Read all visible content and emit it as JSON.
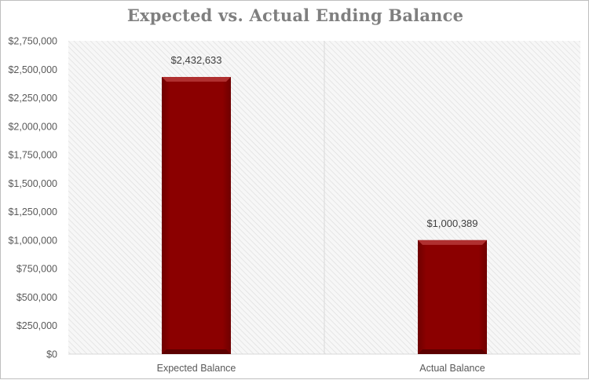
{
  "chart_data": {
    "type": "bar",
    "title": "Expected vs. Actual Ending Balance",
    "xlabel": "",
    "ylabel": "",
    "categories": [
      "Expected Balance",
      "Actual Balance"
    ],
    "values": [
      2432633,
      1000389
    ],
    "data_labels": [
      "$2,432,633",
      "$1,000,389"
    ],
    "ylim": [
      0,
      2750000
    ],
    "y_ticks": [
      0,
      250000,
      500000,
      750000,
      1000000,
      1250000,
      1500000,
      1750000,
      2000000,
      2250000,
      2500000,
      2750000
    ],
    "y_tick_labels": [
      "$0",
      "$250,000",
      "$500,000",
      "$750,000",
      "$1,000,000",
      "$1,250,000",
      "$1,500,000",
      "$1,750,000",
      "$2,000,000",
      "$2,250,000",
      "$2,500,000",
      "$2,750,000"
    ],
    "grid": false,
    "legend": "none",
    "bar_color": "#8b0000",
    "bar_highlight_color": "#b03030",
    "plot_background": "hatched light gray"
  }
}
